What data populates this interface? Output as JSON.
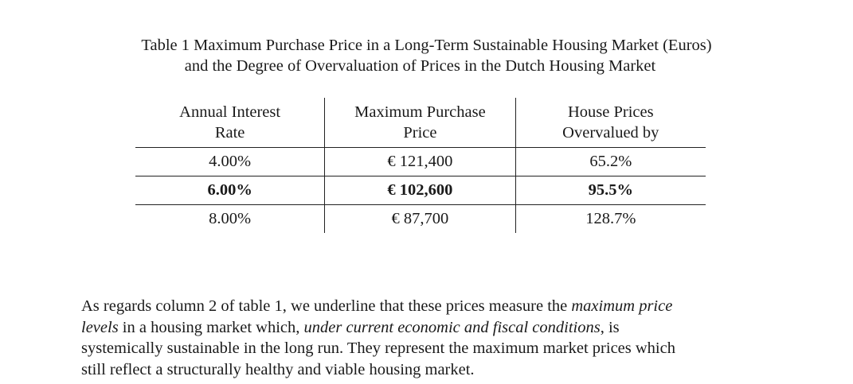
{
  "caption": {
    "line1": "Table 1  Maximum Purchase Price in a Long-Term Sustainable Housing Market (Euros)",
    "line2": "and the Degree of Overvaluation of Prices in the Dutch Housing Market"
  },
  "table": {
    "headers": [
      {
        "line1": "Annual Interest",
        "line2": "Rate"
      },
      {
        "line1": "Maximum Purchase",
        "line2": "Price"
      },
      {
        "line1": "House Prices",
        "line2": "Overvalued by"
      }
    ],
    "rows": [
      {
        "rate": "4.00%",
        "price": "€ 121,400",
        "overvalued": "65.2%",
        "bold": false
      },
      {
        "rate": "6.00%",
        "price": "€ 102,600",
        "overvalued": "95.5%",
        "bold": true
      },
      {
        "rate": "8.00%",
        "price": "€ 87,700",
        "overvalued": "128.7%",
        "bold": false
      }
    ]
  },
  "paragraph": {
    "l1_a": "As regards column 2 of table 1, we underline that these prices measure the ",
    "l1_em": "maximum price",
    "l2_em": "levels",
    "l2_b": " in a housing market which, ",
    "l2_em2": "under current economic and fiscal conditions",
    "l2_c": ", is",
    "l3": "systemically sustainable in the long run.  They represent the maximum market prices which",
    "l4": "still reflect a structurally healthy and viable housing market."
  }
}
